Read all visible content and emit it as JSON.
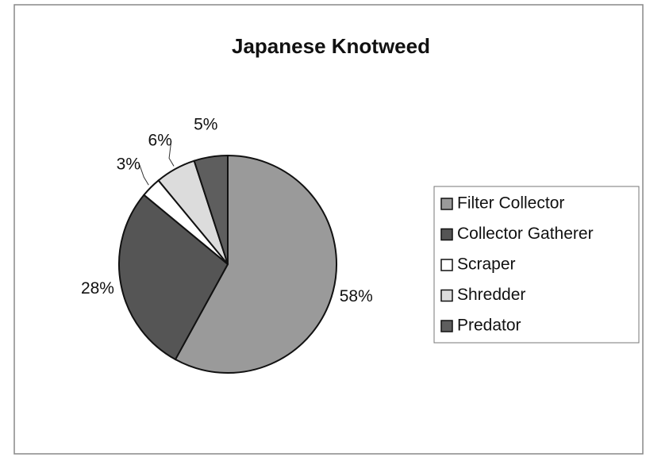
{
  "chart_data": {
    "type": "pie",
    "title": "Japanese Knotweed",
    "categories": [
      "Filter Collector",
      "Collector Gatherer",
      "Scraper",
      "Shredder",
      "Predator"
    ],
    "values": [
      58,
      28,
      3,
      6,
      5
    ],
    "value_labels": [
      "58%",
      "28%",
      "3%",
      "6%",
      "5%"
    ],
    "colors": [
      "#9a9a9a",
      "#555555",
      "#ffffff",
      "#dcdcdc",
      "#5e5e5e"
    ],
    "legend": "right"
  }
}
